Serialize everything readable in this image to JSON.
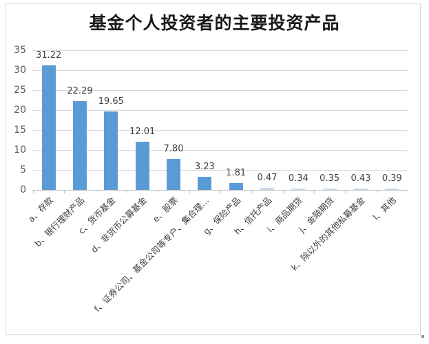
{
  "chart_data": {
    "type": "bar",
    "title": "基金个人投资者的主要投资产品",
    "xlabel": "",
    "ylabel": "",
    "ylim": [
      0,
      35
    ],
    "yticks": [
      0,
      5,
      10,
      15,
      20,
      25,
      30,
      35
    ],
    "grid": true,
    "legend": null,
    "bar_color": "#5b9bd5",
    "categories": [
      "a、存款",
      "b、银行理财产品",
      "c、货币基金",
      "d、非货币公募基金",
      "e、股票",
      "f、证券公司、基金公司等专户、集合理…",
      "g、保险产品",
      "h、信托产品",
      "i、商品期货",
      "j、金融期货",
      "k、除以外的其他私募基金",
      "l、其他"
    ],
    "values": [
      31.22,
      22.29,
      19.65,
      12.01,
      7.8,
      3.23,
      1.81,
      0.47,
      0.34,
      0.35,
      0.43,
      0.39
    ],
    "value_labels": [
      "31.22",
      "22.29",
      "19.65",
      "12.01",
      "7.80",
      "3.23",
      "1.81",
      "0.47",
      "0.34",
      "0.35",
      "0.43",
      "0.39"
    ]
  }
}
